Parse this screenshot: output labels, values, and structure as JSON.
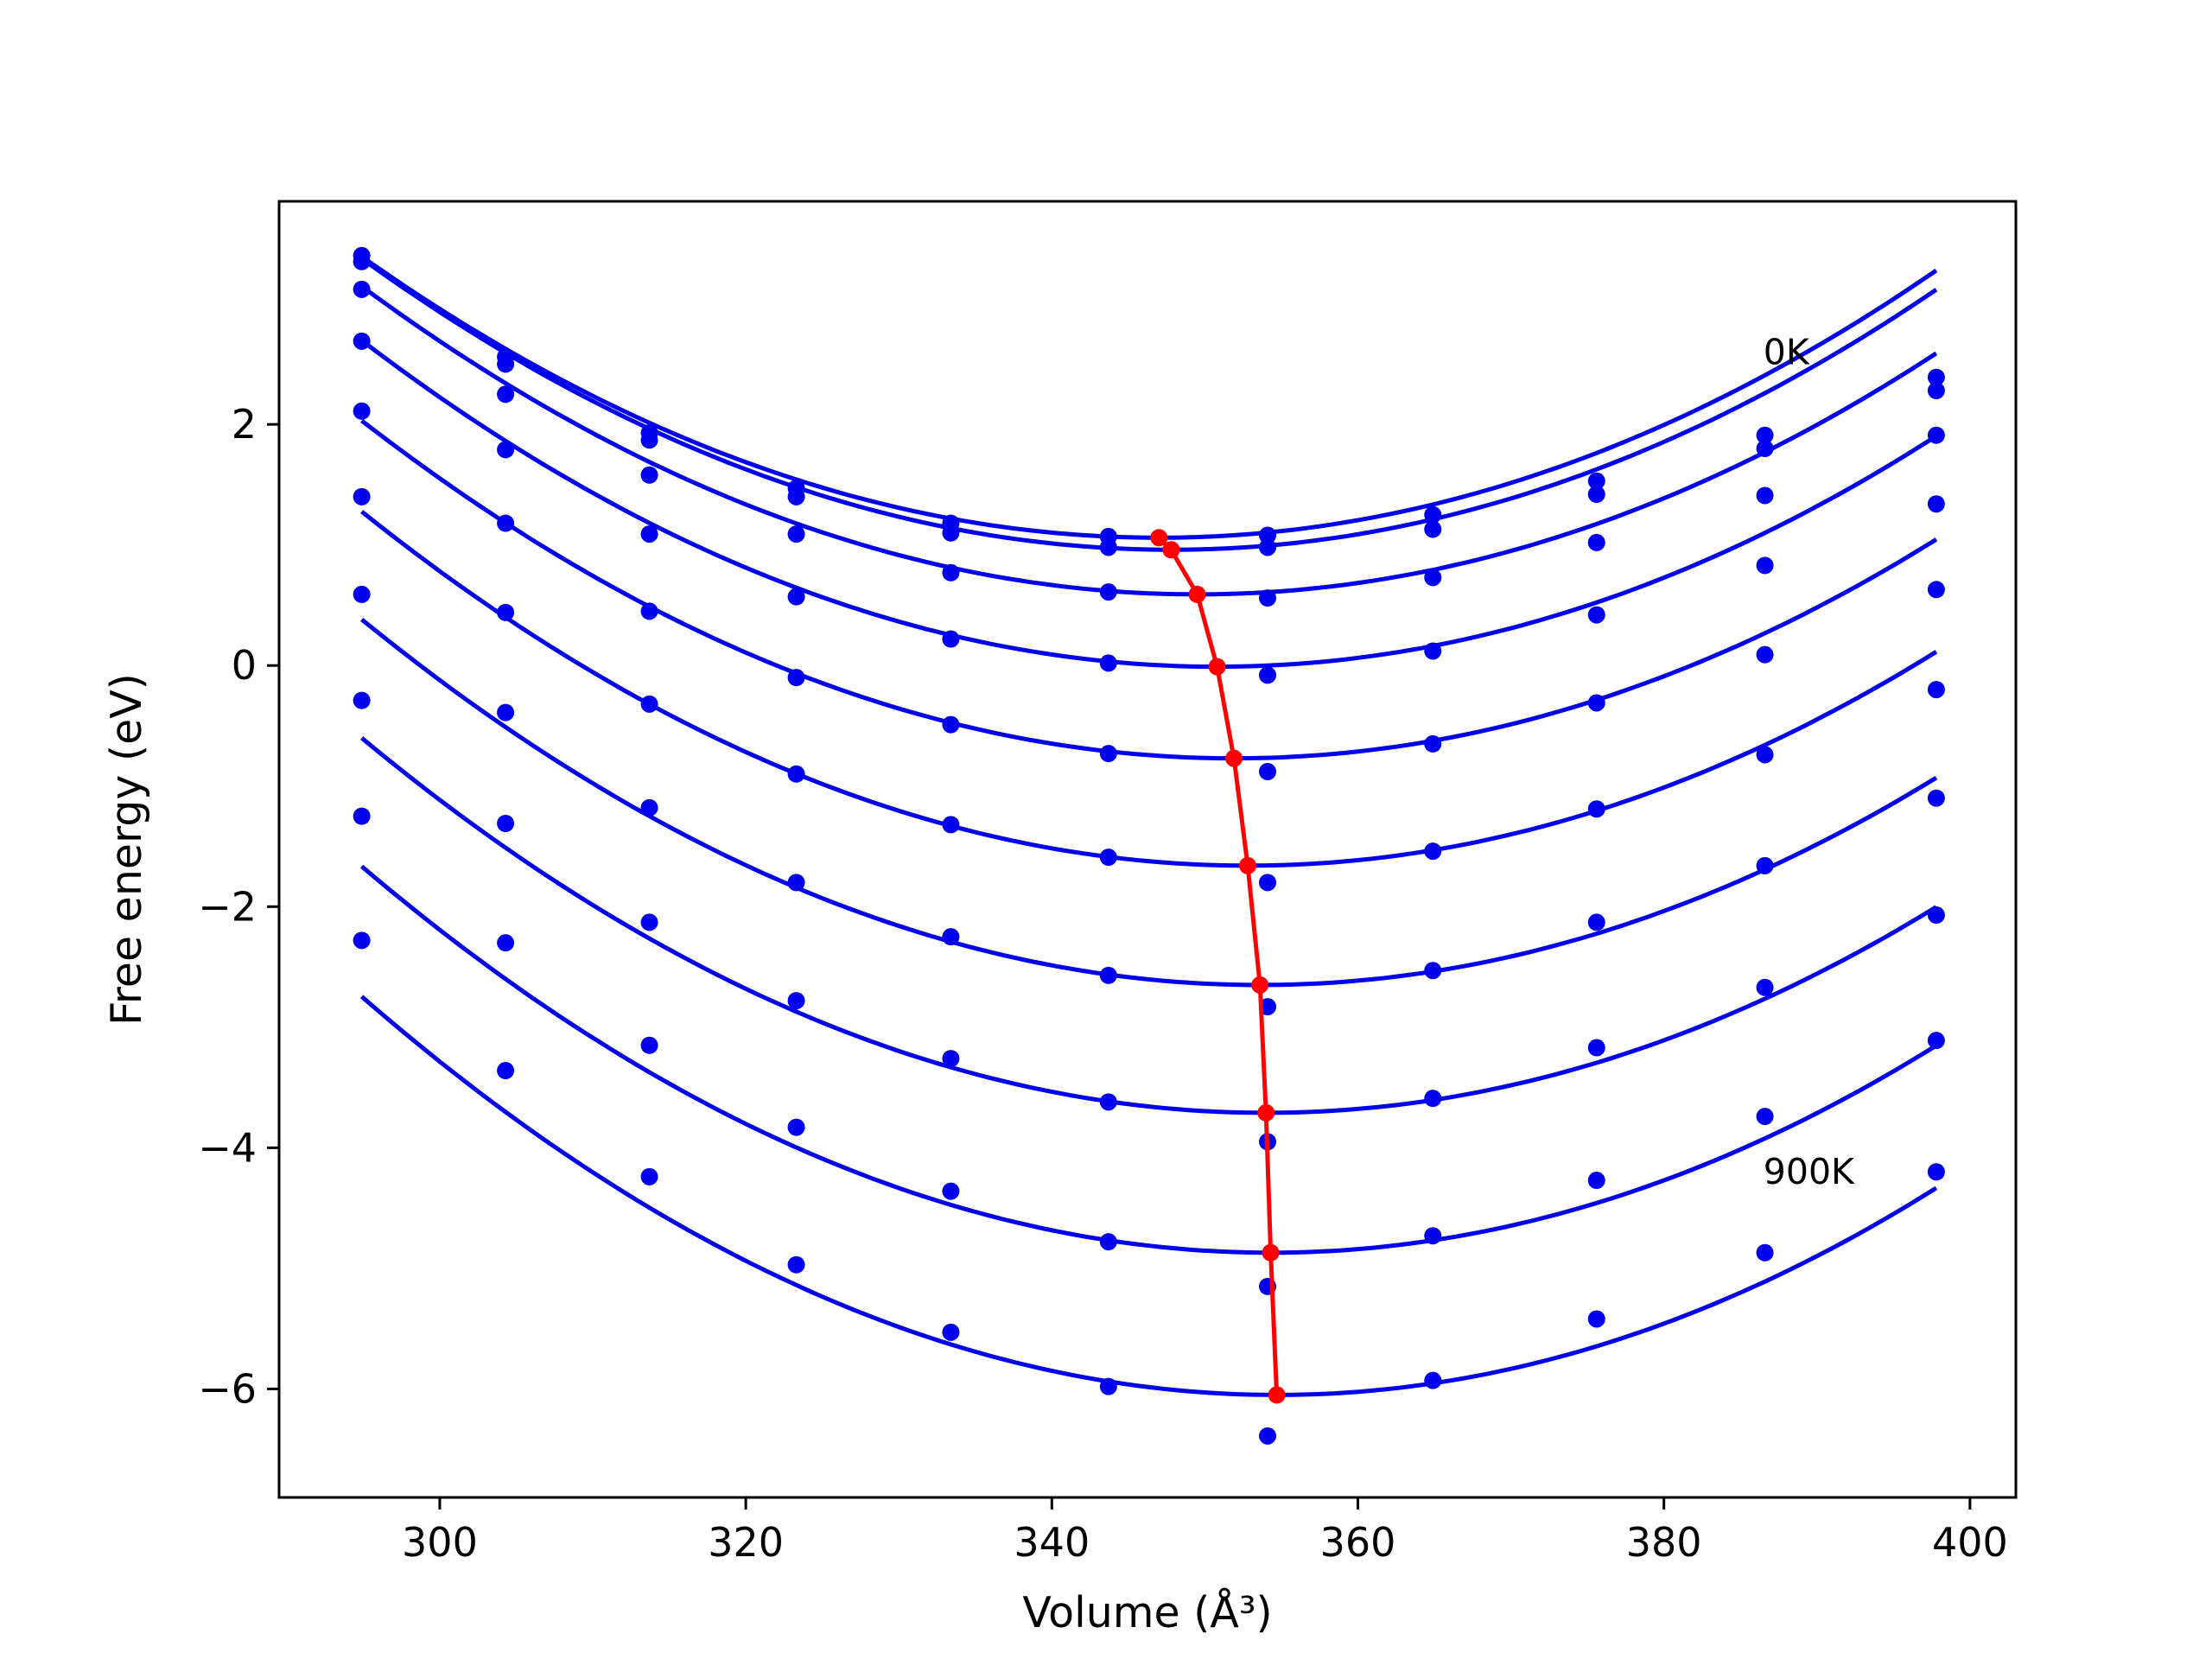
{
  "chart_data": {
    "type": "line",
    "xlabel": "Volume (Å³)",
    "ylabel": "Free energy (eV)",
    "xlim": [
      289.5,
      403
    ],
    "ylim": [
      -6.9,
      3.85
    ],
    "xticks": [
      300,
      320,
      340,
      360,
      380,
      400
    ],
    "yticks": [
      -6,
      -4,
      -2,
      0,
      2
    ],
    "ytick_labels": [
      "−6",
      "−4",
      "−2",
      "0",
      "2"
    ],
    "grid": false,
    "annotations": [
      {
        "text": "0K",
        "x": 386.5,
        "y": 2.5
      },
      {
        "text": "900K",
        "x": 386.5,
        "y": -4.3
      }
    ],
    "volumes": [
      294.9,
      304.3,
      313.7,
      323.3,
      333.4,
      343.7,
      354.1,
      364.9,
      375.6,
      386.6,
      397.8
    ],
    "colors": {
      "fit": "#0000ee",
      "points": "#0000ee",
      "minimum": "#ff0000"
    },
    "series": [
      {
        "points": [
          3.4,
          2.56,
          1.93,
          1.47,
          1.18,
          1.07,
          1.08,
          1.25,
          1.53,
          1.91,
          2.39
        ]
      },
      {
        "points": [
          3.35,
          2.5,
          1.87,
          1.4,
          1.1,
          0.98,
          0.98,
          1.13,
          1.42,
          1.8,
          2.28
        ]
      },
      {
        "points": [
          3.12,
          2.25,
          1.58,
          1.09,
          0.77,
          0.61,
          0.56,
          0.73,
          1.02,
          1.41,
          1.91
        ]
      },
      {
        "points": [
          2.69,
          1.79,
          1.09,
          0.57,
          0.22,
          0.02,
          -0.08,
          0.12,
          0.42,
          0.83,
          1.34
        ]
      },
      {
        "points": [
          2.11,
          1.18,
          0.45,
          -0.1,
          -0.49,
          -0.73,
          -0.88,
          -0.65,
          -0.31,
          0.09,
          0.63
        ]
      },
      {
        "points": [
          1.4,
          0.44,
          -0.32,
          -0.9,
          -1.32,
          -1.59,
          -1.8,
          -1.54,
          -1.19,
          -0.74,
          -0.2
        ]
      },
      {
        "points": [
          0.59,
          -0.39,
          -1.18,
          -1.8,
          -2.25,
          -2.57,
          -2.83,
          -2.53,
          -2.13,
          -1.66,
          -1.1
        ]
      },
      {
        "points": [
          -0.29,
          -1.31,
          -2.13,
          -2.78,
          -3.26,
          -3.62,
          -3.95,
          -3.59,
          -3.17,
          -2.67,
          -2.07
        ]
      },
      {
        "points": [
          -1.25,
          -2.3,
          -3.15,
          -3.83,
          -4.36,
          -4.78,
          -5.15,
          -4.73,
          -4.27,
          -3.74,
          -3.11
        ]
      },
      {
        "points": [
          -2.28,
          -3.36,
          -4.24,
          -4.97,
          -5.53,
          -5.98,
          -6.39,
          -5.93,
          -5.42,
          -4.87,
          -4.2
        ]
      }
    ],
    "fits": [
      {
        "vmin": 347.0,
        "fmin": 1.06,
        "k": 0.000859
      },
      {
        "vmin": 347.8,
        "fmin": 0.96,
        "k": 0.000863
      },
      {
        "vmin": 349.5,
        "fmin": 0.59,
        "k": 0.000857
      },
      {
        "vmin": 350.8,
        "fmin": -0.01,
        "k": 0.000866
      },
      {
        "vmin": 351.9,
        "fmin": -0.77,
        "k": 0.000862
      },
      {
        "vmin": 352.8,
        "fmin": -1.66,
        "k": 0.000876
      },
      {
        "vmin": 353.6,
        "fmin": -2.65,
        "k": 0.00088
      },
      {
        "vmin": 354.0,
        "fmin": -3.71,
        "k": 0.00089
      },
      {
        "vmin": 354.3,
        "fmin": -4.87,
        "k": 0.000908
      },
      {
        "vmin": 354.7,
        "fmin": -6.05,
        "k": 0.000924
      }
    ],
    "minima": {
      "x": [
        347.0,
        347.8,
        349.5,
        350.8,
        351.9,
        352.8,
        353.6,
        354.0,
        354.3,
        354.7
      ],
      "y": [
        1.06,
        0.96,
        0.59,
        -0.01,
        -0.77,
        -1.66,
        -2.65,
        -3.71,
        -4.87,
        -6.05
      ]
    }
  }
}
